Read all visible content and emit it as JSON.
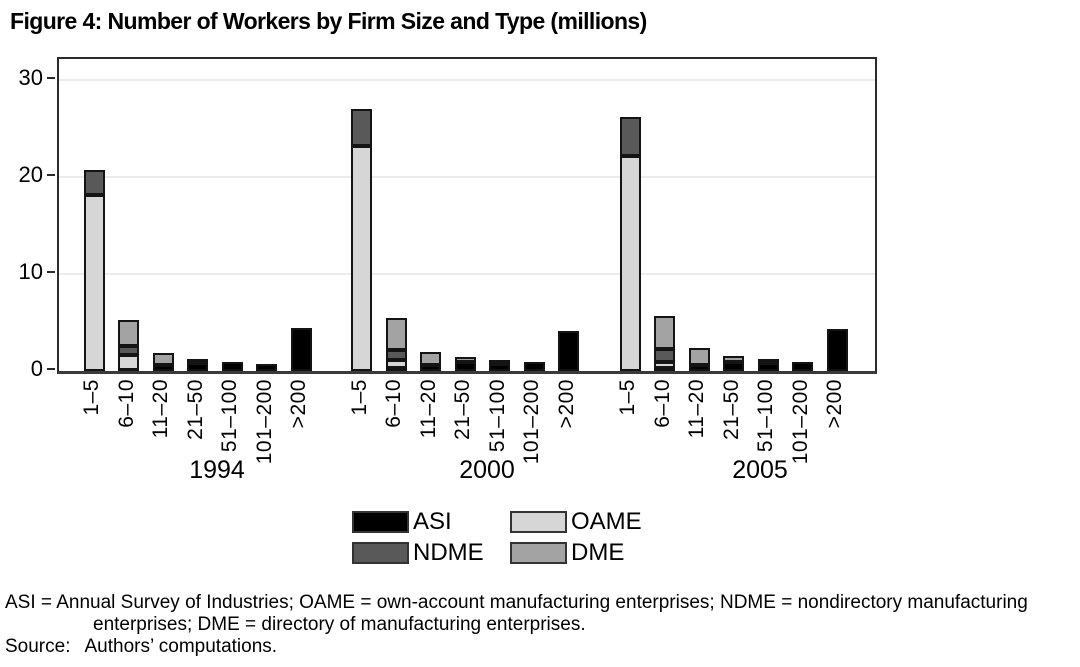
{
  "figure": {
    "title": "Figure 4: Number of Workers by Firm Size and Type (millions)"
  },
  "chart_data": {
    "type": "bar",
    "stacked": true,
    "title": "Figure 4: Number of Workers by Firm Size and Type (millions)",
    "unit": "millions of workers",
    "groups": [
      "1994",
      "2000",
      "2005"
    ],
    "categories": [
      "1–5",
      "6–10",
      "11–20",
      "21–50",
      "51–100",
      "101–200",
      ">200"
    ],
    "stack_order_bottom_to_top": [
      "ASI",
      "OAME",
      "NDME",
      "DME"
    ],
    "series": [
      {
        "name": "ASI",
        "color": "#000000",
        "values": {
          "1994": [
            0,
            0.1,
            0.6,
            0.85,
            0.9,
            0.7,
            4.4
          ],
          "2000": [
            0,
            0.3,
            0.6,
            0.95,
            0.7,
            0.95,
            4.1
          ],
          "2005": [
            0,
            0.3,
            0.6,
            0.95,
            0.85,
            0.95,
            4.3
          ]
        }
      },
      {
        "name": "OAME",
        "color": "#d6d6d6",
        "values": {
          "1994": [
            18.2,
            1.6,
            0,
            0,
            0,
            0,
            0
          ],
          "2000": [
            23.2,
            0.8,
            0,
            0,
            0,
            0,
            0
          ],
          "2005": [
            22.2,
            0.6,
            0,
            0,
            0,
            0,
            0
          ]
        }
      },
      {
        "name": "NDME",
        "color": "#595959",
        "values": {
          "1994": [
            2.5,
            0.9,
            0,
            0,
            0,
            0,
            0
          ],
          "2000": [
            3.8,
            1.1,
            0,
            0,
            0,
            0,
            0
          ],
          "2005": [
            4.0,
            1.4,
            0,
            0,
            0,
            0,
            0
          ]
        }
      },
      {
        "name": "DME",
        "color": "#a3a3a3",
        "values": {
          "1994": [
            0,
            2.7,
            1.3,
            0.35,
            0,
            0,
            0
          ],
          "2000": [
            0,
            3.3,
            1.4,
            0.45,
            0.15,
            0,
            0
          ],
          "2005": [
            0,
            3.4,
            1.8,
            0.6,
            0.2,
            0,
            0
          ]
        }
      }
    ],
    "ylim": [
      0,
      32.2
    ],
    "yticks": [
      0,
      10,
      20,
      30
    ],
    "grid": true,
    "legend_position": "bottom-center",
    "legend_order": [
      [
        "ASI",
        "NDME"
      ],
      [
        "OAME",
        "DME"
      ]
    ]
  },
  "legend": {
    "items": [
      {
        "label": "ASI",
        "color": "#000000"
      },
      {
        "label": "NDME",
        "color": "#595959"
      },
      {
        "label": "OAME",
        "color": "#d6d6d6"
      },
      {
        "label": "DME",
        "color": "#a3a3a3"
      }
    ]
  },
  "footnote": {
    "line1": "ASI = Annual Survey of Industries; OAME = own-account manufacturing enterprises; NDME = nondirectory manufacturing",
    "line2": "enterprises; DME = directory of manufacturing enterprises.",
    "source_label": "Source:",
    "source_text": "Authors’ computations."
  }
}
